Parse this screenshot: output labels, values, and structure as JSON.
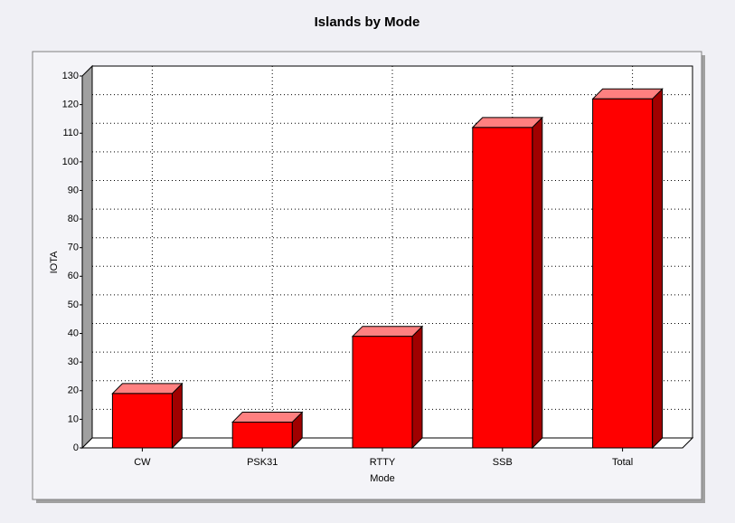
{
  "chart_data": {
    "type": "bar3d",
    "title": "Islands by Mode",
    "x_label": "Mode",
    "y_label": "IOTA",
    "categories": [
      "CW",
      "PSK31",
      "RTTY",
      "SSB",
      "Total"
    ],
    "values": [
      19,
      9,
      39,
      112,
      122
    ],
    "color": "#ff0000",
    "ylim": [
      0,
      130
    ],
    "yticks": [
      0,
      10,
      20,
      30,
      40,
      50,
      60,
      70,
      80,
      90,
      100,
      110,
      120,
      130
    ],
    "grid": true
  }
}
